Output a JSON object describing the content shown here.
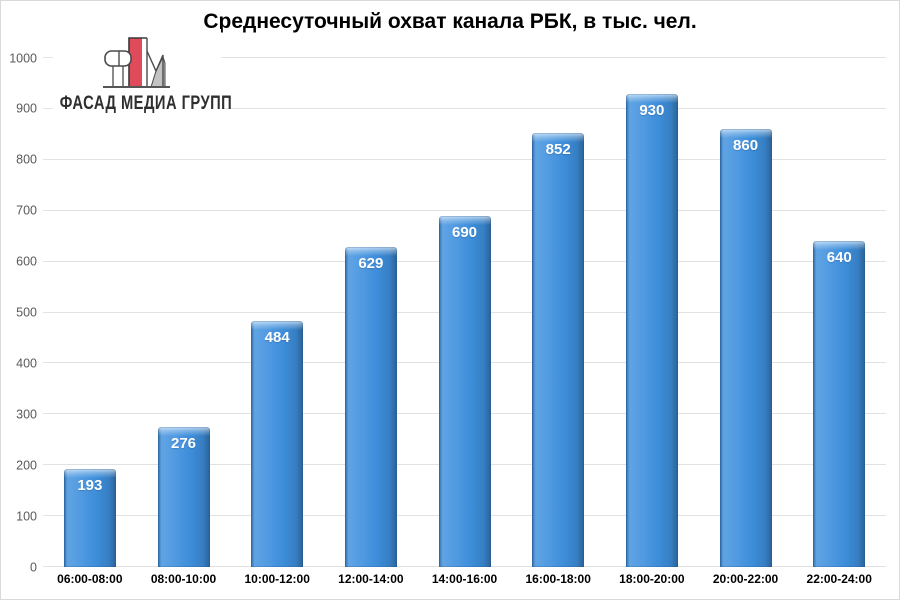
{
  "logo": {
    "company": "ФАСАД МЕДИА ГРУПП",
    "mark_red": "#e04b5c",
    "mark_gray": "#c3c3c3",
    "mark_outline": "#4a4a4a"
  },
  "chart_data": {
    "type": "bar",
    "title": "Среднесуточный охват канала РБК, в тыс. чел.",
    "categories": [
      "06:00-08:00",
      "08:00-10:00",
      "10:00-12:00",
      "12:00-14:00",
      "14:00-16:00",
      "16:00-18:00",
      "18:00-20:00",
      "20:00-22:00",
      "22:00-24:00"
    ],
    "values": [
      193,
      276,
      484,
      629,
      690,
      852,
      930,
      860,
      640
    ],
    "xlabel": "",
    "ylabel": "",
    "ylim": [
      0,
      1000
    ],
    "ytick_step": 100,
    "grid": true,
    "legend": null,
    "bar_color": "#3E90DE",
    "value_label_color": "#ffffff",
    "gridline_color": "#e2e2e2",
    "ytick_color": "#595959",
    "xtick_color": "#000000"
  }
}
